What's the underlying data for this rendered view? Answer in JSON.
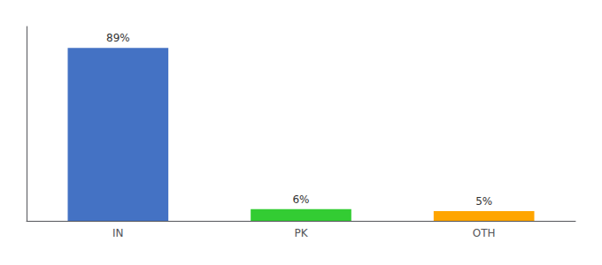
{
  "chart_data": {
    "type": "bar",
    "categories": [
      "IN",
      "PK",
      "OTH"
    ],
    "values": [
      89,
      6,
      5
    ],
    "value_labels": [
      "89%",
      "6%",
      "5%"
    ],
    "colors": [
      "#4472C4",
      "#33CC33",
      "#FFA500"
    ],
    "ylim": [
      0,
      100
    ],
    "grid": false,
    "data_labels": true,
    "tick_labels": "x"
  }
}
